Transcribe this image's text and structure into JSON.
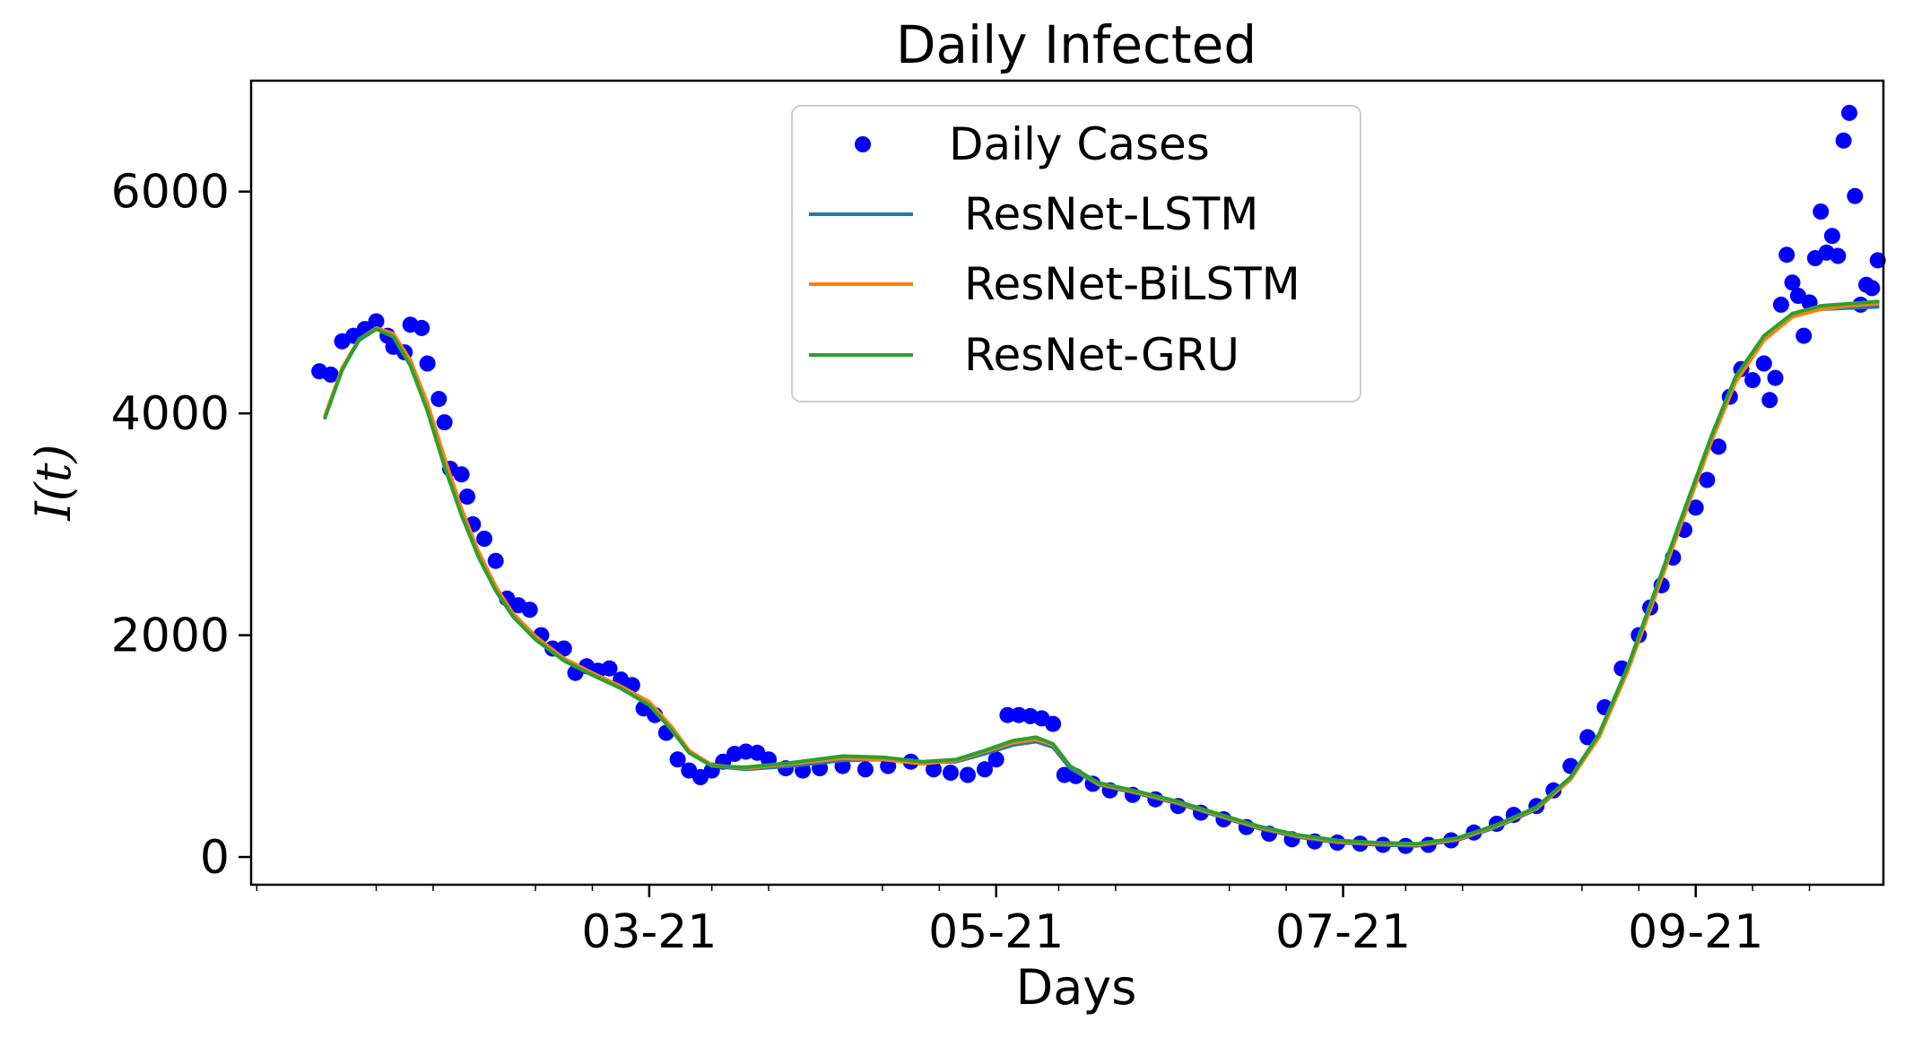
{
  "chart_data": {
    "type": "line",
    "title": "Daily Infected",
    "xlabel": "Days",
    "ylabel": "I(t)",
    "xlim": [
      "2021-01-10",
      "2021-10-24"
    ],
    "ylim": [
      -250,
      7000
    ],
    "x_ticks": [
      {
        "date": "2021-03-21",
        "label": "03-21"
      },
      {
        "date": "2021-05-21",
        "label": "05-21"
      },
      {
        "date": "2021-07-21",
        "label": "07-21"
      },
      {
        "date": "2021-09-21",
        "label": "09-21"
      }
    ],
    "y_ticks": [
      {
        "value": 0,
        "label": "0"
      },
      {
        "value": 2000,
        "label": "2000"
      },
      {
        "value": 4000,
        "label": "4000"
      },
      {
        "value": 6000,
        "label": "6000"
      }
    ],
    "legend": {
      "position": "upper-center"
    },
    "grid": false,
    "scatter_series": {
      "name": "Daily Cases",
      "color": "#0000ff",
      "points": [
        [
          "2021-01-22",
          4380
        ],
        [
          "2021-01-24",
          4350
        ],
        [
          "2021-01-26",
          4650
        ],
        [
          "2021-01-28",
          4700
        ],
        [
          "2021-01-30",
          4760
        ],
        [
          "2021-02-01",
          4830
        ],
        [
          "2021-02-03",
          4700
        ],
        [
          "2021-02-04",
          4600
        ],
        [
          "2021-02-06",
          4550
        ],
        [
          "2021-02-07",
          4800
        ],
        [
          "2021-02-09",
          4770
        ],
        [
          "2021-02-10",
          4450
        ],
        [
          "2021-02-12",
          4130
        ],
        [
          "2021-02-13",
          3920
        ],
        [
          "2021-02-14",
          3500
        ],
        [
          "2021-02-16",
          3450
        ],
        [
          "2021-02-17",
          3250
        ],
        [
          "2021-02-18",
          3000
        ],
        [
          "2021-02-20",
          2870
        ],
        [
          "2021-02-22",
          2670
        ],
        [
          "2021-02-24",
          2330
        ],
        [
          "2021-02-26",
          2270
        ],
        [
          "2021-02-28",
          2230
        ],
        [
          "2021-03-02",
          2000
        ],
        [
          "2021-03-04",
          1880
        ],
        [
          "2021-03-06",
          1880
        ],
        [
          "2021-03-08",
          1660
        ],
        [
          "2021-03-10",
          1720
        ],
        [
          "2021-03-12",
          1680
        ],
        [
          "2021-03-14",
          1700
        ],
        [
          "2021-03-16",
          1600
        ],
        [
          "2021-03-18",
          1550
        ],
        [
          "2021-03-20",
          1340
        ],
        [
          "2021-03-22",
          1280
        ],
        [
          "2021-03-24",
          1120
        ],
        [
          "2021-03-26",
          880
        ],
        [
          "2021-03-28",
          780
        ],
        [
          "2021-03-30",
          720
        ],
        [
          "2021-04-01",
          780
        ],
        [
          "2021-04-03",
          860
        ],
        [
          "2021-04-05",
          930
        ],
        [
          "2021-04-07",
          950
        ],
        [
          "2021-04-09",
          940
        ],
        [
          "2021-04-11",
          880
        ],
        [
          "2021-04-14",
          800
        ],
        [
          "2021-04-17",
          780
        ],
        [
          "2021-04-20",
          800
        ],
        [
          "2021-04-24",
          820
        ],
        [
          "2021-04-28",
          790
        ],
        [
          "2021-05-02",
          820
        ],
        [
          "2021-05-06",
          860
        ],
        [
          "2021-05-10",
          790
        ],
        [
          "2021-05-13",
          760
        ],
        [
          "2021-05-16",
          740
        ],
        [
          "2021-05-19",
          790
        ],
        [
          "2021-05-21",
          880
        ],
        [
          "2021-05-23",
          1280
        ],
        [
          "2021-05-25",
          1280
        ],
        [
          "2021-05-27",
          1270
        ],
        [
          "2021-05-29",
          1250
        ],
        [
          "2021-05-31",
          1200
        ],
        [
          "2021-06-02",
          740
        ],
        [
          "2021-06-04",
          730
        ],
        [
          "2021-06-07",
          660
        ],
        [
          "2021-06-10",
          600
        ],
        [
          "2021-06-14",
          560
        ],
        [
          "2021-06-18",
          520
        ],
        [
          "2021-06-22",
          460
        ],
        [
          "2021-06-26",
          400
        ],
        [
          "2021-06-30",
          340
        ],
        [
          "2021-07-04",
          270
        ],
        [
          "2021-07-08",
          210
        ],
        [
          "2021-07-12",
          160
        ],
        [
          "2021-07-16",
          140
        ],
        [
          "2021-07-20",
          130
        ],
        [
          "2021-07-24",
          120
        ],
        [
          "2021-07-28",
          110
        ],
        [
          "2021-08-01",
          100
        ],
        [
          "2021-08-05",
          110
        ],
        [
          "2021-08-09",
          150
        ],
        [
          "2021-08-13",
          220
        ],
        [
          "2021-08-17",
          300
        ],
        [
          "2021-08-20",
          380
        ],
        [
          "2021-08-24",
          460
        ],
        [
          "2021-08-27",
          600
        ],
        [
          "2021-08-30",
          820
        ],
        [
          "2021-09-02",
          1080
        ],
        [
          "2021-09-05",
          1350
        ],
        [
          "2021-09-08",
          1700
        ],
        [
          "2021-09-11",
          2000
        ],
        [
          "2021-09-13",
          2250
        ],
        [
          "2021-09-15",
          2450
        ],
        [
          "2021-09-17",
          2700
        ],
        [
          "2021-09-19",
          2950
        ],
        [
          "2021-09-21",
          3150
        ],
        [
          "2021-09-23",
          3400
        ],
        [
          "2021-09-25",
          3700
        ],
        [
          "2021-09-27",
          4150
        ],
        [
          "2021-09-29",
          4400
        ],
        [
          "2021-10-01",
          4300
        ],
        [
          "2021-10-03",
          4450
        ],
        [
          "2021-10-04",
          4120
        ],
        [
          "2021-10-05",
          4320
        ],
        [
          "2021-10-06",
          4980
        ],
        [
          "2021-10-07",
          5430
        ],
        [
          "2021-10-08",
          5180
        ],
        [
          "2021-10-09",
          5060
        ],
        [
          "2021-10-10",
          4700
        ],
        [
          "2021-10-11",
          5000
        ],
        [
          "2021-10-12",
          5400
        ],
        [
          "2021-10-13",
          5820
        ],
        [
          "2021-10-14",
          5450
        ],
        [
          "2021-10-15",
          5600
        ],
        [
          "2021-10-16",
          5420
        ],
        [
          "2021-10-17",
          6460
        ],
        [
          "2021-10-18",
          6710
        ],
        [
          "2021-10-19",
          5960
        ],
        [
          "2021-10-20",
          4980
        ],
        [
          "2021-10-21",
          5160
        ],
        [
          "2021-10-22",
          5130
        ],
        [
          "2021-10-23",
          5380
        ]
      ]
    },
    "series": [
      {
        "name": "ResNet-LSTM",
        "color": "#1f77b4",
        "points": [
          [
            "2021-01-23",
            3970
          ],
          [
            "2021-01-26",
            4400
          ],
          [
            "2021-01-29",
            4660
          ],
          [
            "2021-02-01",
            4760
          ],
          [
            "2021-02-04",
            4700
          ],
          [
            "2021-02-07",
            4450
          ],
          [
            "2021-02-10",
            4050
          ],
          [
            "2021-02-13",
            3550
          ],
          [
            "2021-02-16",
            3100
          ],
          [
            "2021-02-19",
            2720
          ],
          [
            "2021-02-22",
            2420
          ],
          [
            "2021-02-25",
            2180
          ],
          [
            "2021-03-01",
            1970
          ],
          [
            "2021-03-06",
            1780
          ],
          [
            "2021-03-11",
            1650
          ],
          [
            "2021-03-16",
            1530
          ],
          [
            "2021-03-21",
            1380
          ],
          [
            "2021-03-25",
            1150
          ],
          [
            "2021-03-28",
            950
          ],
          [
            "2021-04-01",
            820
          ],
          [
            "2021-04-07",
            790
          ],
          [
            "2021-04-15",
            820
          ],
          [
            "2021-04-24",
            870
          ],
          [
            "2021-05-01",
            880
          ],
          [
            "2021-05-08",
            850
          ],
          [
            "2021-05-14",
            860
          ],
          [
            "2021-05-19",
            930
          ],
          [
            "2021-05-24",
            1010
          ],
          [
            "2021-05-28",
            1040
          ],
          [
            "2021-05-31",
            990
          ],
          [
            "2021-06-03",
            800
          ],
          [
            "2021-06-08",
            650
          ],
          [
            "2021-06-15",
            570
          ],
          [
            "2021-06-22",
            480
          ],
          [
            "2021-06-29",
            370
          ],
          [
            "2021-07-06",
            260
          ],
          [
            "2021-07-13",
            180
          ],
          [
            "2021-07-20",
            130
          ],
          [
            "2021-07-27",
            110
          ],
          [
            "2021-08-03",
            100
          ],
          [
            "2021-08-10",
            150
          ],
          [
            "2021-08-17",
            270
          ],
          [
            "2021-08-24",
            430
          ],
          [
            "2021-08-30",
            700
          ],
          [
            "2021-09-04",
            1100
          ],
          [
            "2021-09-09",
            1700
          ],
          [
            "2021-09-14",
            2400
          ],
          [
            "2021-09-19",
            3100
          ],
          [
            "2021-09-24",
            3800
          ],
          [
            "2021-09-28",
            4300
          ],
          [
            "2021-10-03",
            4680
          ],
          [
            "2021-10-08",
            4880
          ],
          [
            "2021-10-13",
            4940
          ],
          [
            "2021-10-18",
            4950
          ],
          [
            "2021-10-23",
            4960
          ]
        ]
      },
      {
        "name": "ResNet-BiLSTM",
        "color": "#ff7f0e",
        "points": [
          [
            "2021-01-23",
            3980
          ],
          [
            "2021-01-26",
            4410
          ],
          [
            "2021-01-29",
            4670
          ],
          [
            "2021-02-01",
            4770
          ],
          [
            "2021-02-04",
            4720
          ],
          [
            "2021-02-07",
            4480
          ],
          [
            "2021-02-10",
            4090
          ],
          [
            "2021-02-13",
            3600
          ],
          [
            "2021-02-16",
            3140
          ],
          [
            "2021-02-19",
            2750
          ],
          [
            "2021-02-22",
            2440
          ],
          [
            "2021-02-25",
            2200
          ],
          [
            "2021-03-01",
            1990
          ],
          [
            "2021-03-06",
            1790
          ],
          [
            "2021-03-11",
            1660
          ],
          [
            "2021-03-16",
            1540
          ],
          [
            "2021-03-21",
            1400
          ],
          [
            "2021-03-25",
            1170
          ],
          [
            "2021-03-28",
            960
          ],
          [
            "2021-04-01",
            830
          ],
          [
            "2021-04-07",
            800
          ],
          [
            "2021-04-15",
            840
          ],
          [
            "2021-04-24",
            890
          ],
          [
            "2021-05-01",
            880
          ],
          [
            "2021-05-08",
            840
          ],
          [
            "2021-05-14",
            870
          ],
          [
            "2021-05-19",
            950
          ],
          [
            "2021-05-24",
            1030
          ],
          [
            "2021-05-28",
            1060
          ],
          [
            "2021-05-31",
            1010
          ],
          [
            "2021-06-03",
            820
          ],
          [
            "2021-06-08",
            660
          ],
          [
            "2021-06-15",
            580
          ],
          [
            "2021-06-22",
            490
          ],
          [
            "2021-06-29",
            380
          ],
          [
            "2021-07-06",
            270
          ],
          [
            "2021-07-13",
            190
          ],
          [
            "2021-07-20",
            140
          ],
          [
            "2021-07-27",
            120
          ],
          [
            "2021-08-03",
            110
          ],
          [
            "2021-08-10",
            160
          ],
          [
            "2021-08-17",
            280
          ],
          [
            "2021-08-24",
            440
          ],
          [
            "2021-08-30",
            700
          ],
          [
            "2021-09-04",
            1080
          ],
          [
            "2021-09-09",
            1670
          ],
          [
            "2021-09-14",
            2370
          ],
          [
            "2021-09-19",
            3080
          ],
          [
            "2021-09-24",
            3780
          ],
          [
            "2021-09-28",
            4280
          ],
          [
            "2021-10-03",
            4660
          ],
          [
            "2021-10-08",
            4870
          ],
          [
            "2021-10-13",
            4940
          ],
          [
            "2021-10-18",
            4970
          ],
          [
            "2021-10-23",
            4990
          ]
        ]
      },
      {
        "name": "ResNet-GRU",
        "color": "#2ca02c",
        "points": [
          [
            "2021-01-23",
            3960
          ],
          [
            "2021-01-26",
            4390
          ],
          [
            "2021-01-29",
            4670
          ],
          [
            "2021-02-01",
            4760
          ],
          [
            "2021-02-04",
            4690
          ],
          [
            "2021-02-07",
            4430
          ],
          [
            "2021-02-10",
            4020
          ],
          [
            "2021-02-13",
            3520
          ],
          [
            "2021-02-16",
            3080
          ],
          [
            "2021-02-19",
            2700
          ],
          [
            "2021-02-22",
            2400
          ],
          [
            "2021-02-25",
            2170
          ],
          [
            "2021-03-01",
            1960
          ],
          [
            "2021-03-06",
            1770
          ],
          [
            "2021-03-11",
            1640
          ],
          [
            "2021-03-16",
            1520
          ],
          [
            "2021-03-21",
            1370
          ],
          [
            "2021-03-25",
            1140
          ],
          [
            "2021-03-28",
            940
          ],
          [
            "2021-04-01",
            820
          ],
          [
            "2021-04-07",
            810
          ],
          [
            "2021-04-15",
            850
          ],
          [
            "2021-04-24",
            910
          ],
          [
            "2021-05-01",
            900
          ],
          [
            "2021-05-08",
            860
          ],
          [
            "2021-05-14",
            880
          ],
          [
            "2021-05-19",
            960
          ],
          [
            "2021-05-24",
            1050
          ],
          [
            "2021-05-28",
            1080
          ],
          [
            "2021-05-31",
            1020
          ],
          [
            "2021-06-03",
            820
          ],
          [
            "2021-06-08",
            670
          ],
          [
            "2021-06-15",
            590
          ],
          [
            "2021-06-22",
            500
          ],
          [
            "2021-06-29",
            390
          ],
          [
            "2021-07-06",
            280
          ],
          [
            "2021-07-13",
            200
          ],
          [
            "2021-07-20",
            150
          ],
          [
            "2021-07-27",
            130
          ],
          [
            "2021-08-03",
            120
          ],
          [
            "2021-08-10",
            170
          ],
          [
            "2021-08-17",
            290
          ],
          [
            "2021-08-24",
            450
          ],
          [
            "2021-08-30",
            720
          ],
          [
            "2021-09-04",
            1110
          ],
          [
            "2021-09-09",
            1710
          ],
          [
            "2021-09-14",
            2420
          ],
          [
            "2021-09-19",
            3130
          ],
          [
            "2021-09-24",
            3830
          ],
          [
            "2021-09-28",
            4330
          ],
          [
            "2021-10-03",
            4700
          ],
          [
            "2021-10-08",
            4900
          ],
          [
            "2021-10-13",
            4970
          ],
          [
            "2021-10-18",
            4990
          ],
          [
            "2021-10-23",
            5010
          ]
        ]
      }
    ]
  }
}
